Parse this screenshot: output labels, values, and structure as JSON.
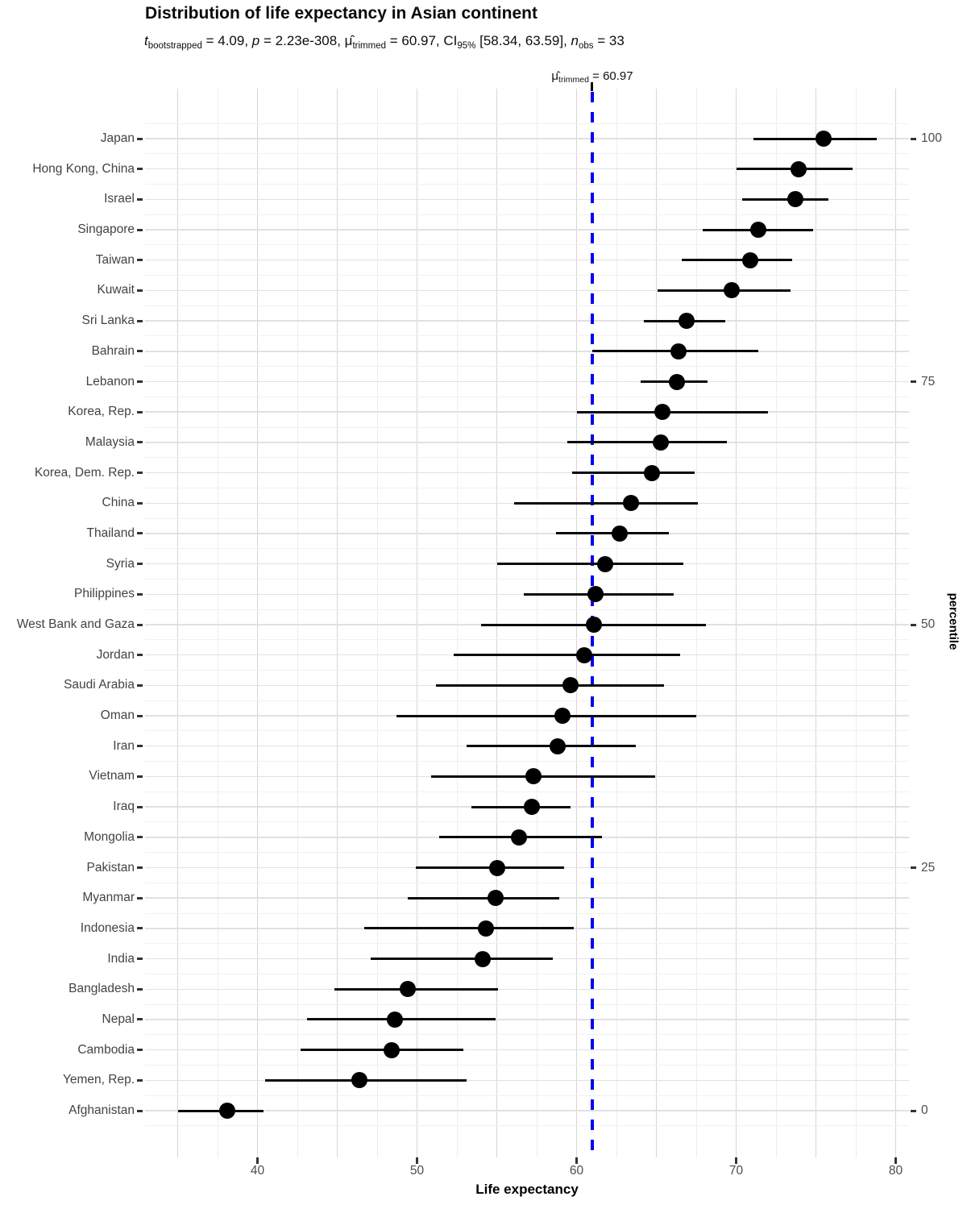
{
  "chart_data": {
    "type": "scatter",
    "subtype": "dot-plot-with-95ci-error-bars",
    "title": "Distribution of life expectancy in Asian continent",
    "subtitle_plain": "t bootstrapped = 4.09, p = 2.23e-308, μ̂ trimmed = 60.97, CI 95% [58.34, 63.59], n obs = 33",
    "subtitle_segments": [
      {
        "text": "t",
        "style": "italic"
      },
      {
        "text": "bootstrapped",
        "style": "sub"
      },
      {
        "text": " = 4.09, ",
        "style": "normal"
      },
      {
        "text": "p",
        "style": "italic"
      },
      {
        "text": " = 2.23e-308, ",
        "style": "normal"
      },
      {
        "text": "μ̂",
        "style": "normal"
      },
      {
        "text": "trimmed",
        "style": "sub"
      },
      {
        "text": " = 60.97, CI",
        "style": "normal"
      },
      {
        "text": "95%",
        "style": "sub"
      },
      {
        "text": " [58.34, 63.59], ",
        "style": "normal"
      },
      {
        "text": "n",
        "style": "italic"
      },
      {
        "text": "obs",
        "style": "sub"
      },
      {
        "text": " = 33",
        "style": "normal"
      }
    ],
    "annotation_segments": [
      {
        "text": "μ̂",
        "style": "normal"
      },
      {
        "text": "trimmed",
        "style": "sub"
      },
      {
        "text": " = 60.97",
        "style": "normal"
      }
    ],
    "stats": {
      "t_bootstrapped": 4.09,
      "p_value": "2.23e-308",
      "mu_trimmed": 60.97,
      "ci_95": [
        58.34,
        63.59
      ],
      "n_obs": 33
    },
    "xlabel": "Life expectancy",
    "ylabel_right": "percentile",
    "x_ticks": [
      40,
      50,
      60,
      70,
      80
    ],
    "xlim": [
      33,
      81
    ],
    "x_grid": {
      "start": 35,
      "end": 80,
      "minor_step": 2.5,
      "major_step": 5
    },
    "right_ticks": [
      {
        "label": "100",
        "row": 0
      },
      {
        "label": "75",
        "row": 8
      },
      {
        "label": "50",
        "row": 16
      },
      {
        "label": "25",
        "row": 24
      },
      {
        "label": "0",
        "row": 32
      }
    ],
    "reference_line": {
      "value": 60.97,
      "style": "dashed"
    },
    "series": [
      {
        "country": "Japan",
        "estimate": 75.5,
        "ci_low": 71.1,
        "ci_high": 78.8
      },
      {
        "country": "Hong Kong, China",
        "estimate": 73.9,
        "ci_low": 70.0,
        "ci_high": 77.3
      },
      {
        "country": "Israel",
        "estimate": 73.7,
        "ci_low": 70.4,
        "ci_high": 75.8
      },
      {
        "country": "Singapore",
        "estimate": 71.4,
        "ci_low": 67.9,
        "ci_high": 74.8
      },
      {
        "country": "Taiwan",
        "estimate": 70.9,
        "ci_low": 66.6,
        "ci_high": 73.5
      },
      {
        "country": "Kuwait",
        "estimate": 69.7,
        "ci_low": 65.1,
        "ci_high": 73.4
      },
      {
        "country": "Sri Lanka",
        "estimate": 66.9,
        "ci_low": 64.2,
        "ci_high": 69.3
      },
      {
        "country": "Bahrain",
        "estimate": 66.4,
        "ci_low": 61.0,
        "ci_high": 71.4
      },
      {
        "country": "Lebanon",
        "estimate": 66.3,
        "ci_low": 64.0,
        "ci_high": 68.2
      },
      {
        "country": "Korea, Rep.",
        "estimate": 65.4,
        "ci_low": 60.0,
        "ci_high": 72.0
      },
      {
        "country": "Malaysia",
        "estimate": 65.3,
        "ci_low": 59.4,
        "ci_high": 69.4
      },
      {
        "country": "Korea, Dem. Rep.",
        "estimate": 64.7,
        "ci_low": 59.7,
        "ci_high": 67.4
      },
      {
        "country": "China",
        "estimate": 63.4,
        "ci_low": 56.1,
        "ci_high": 67.6
      },
      {
        "country": "Thailand",
        "estimate": 62.7,
        "ci_low": 58.7,
        "ci_high": 65.8
      },
      {
        "country": "Syria",
        "estimate": 61.8,
        "ci_low": 55.0,
        "ci_high": 66.7
      },
      {
        "country": "Philippines",
        "estimate": 61.2,
        "ci_low": 56.7,
        "ci_high": 66.1
      },
      {
        "country": "West Bank and Gaza",
        "estimate": 61.1,
        "ci_low": 54.0,
        "ci_high": 68.1
      },
      {
        "country": "Jordan",
        "estimate": 60.5,
        "ci_low": 52.3,
        "ci_high": 66.5
      },
      {
        "country": "Saudi Arabia",
        "estimate": 59.6,
        "ci_low": 51.2,
        "ci_high": 65.5
      },
      {
        "country": "Oman",
        "estimate": 59.1,
        "ci_low": 48.7,
        "ci_high": 67.5
      },
      {
        "country": "Iran",
        "estimate": 58.8,
        "ci_low": 53.1,
        "ci_high": 63.7
      },
      {
        "country": "Vietnam",
        "estimate": 57.3,
        "ci_low": 50.9,
        "ci_high": 64.9
      },
      {
        "country": "Iraq",
        "estimate": 57.2,
        "ci_low": 53.4,
        "ci_high": 59.6
      },
      {
        "country": "Mongolia",
        "estimate": 56.4,
        "ci_low": 51.4,
        "ci_high": 61.6
      },
      {
        "country": "Pakistan",
        "estimate": 55.0,
        "ci_low": 49.9,
        "ci_high": 59.2
      },
      {
        "country": "Myanmar",
        "estimate": 54.9,
        "ci_low": 49.4,
        "ci_high": 58.9
      },
      {
        "country": "Indonesia",
        "estimate": 54.3,
        "ci_low": 46.7,
        "ci_high": 59.8
      },
      {
        "country": "India",
        "estimate": 54.1,
        "ci_low": 47.1,
        "ci_high": 58.5
      },
      {
        "country": "Bangladesh",
        "estimate": 49.4,
        "ci_low": 44.8,
        "ci_high": 55.1
      },
      {
        "country": "Nepal",
        "estimate": 48.6,
        "ci_low": 43.1,
        "ci_high": 54.9
      },
      {
        "country": "Cambodia",
        "estimate": 48.4,
        "ci_low": 42.7,
        "ci_high": 52.9
      },
      {
        "country": "Yemen, Rep.",
        "estimate": 46.4,
        "ci_low": 40.5,
        "ci_high": 53.1
      },
      {
        "country": "Afghanistan",
        "estimate": 38.1,
        "ci_low": 35.0,
        "ci_high": 40.4
      }
    ],
    "colors": {
      "point": "#000000",
      "ci_line": "#0a0a0a",
      "reference_line": "#0202ee",
      "grid_major_v": "#d6d6d6",
      "grid_minor_v": "#ededed",
      "grid_major_h": "#e1e1e1",
      "grid_minor_h": "#f1f1f1",
      "axis_text": "#4d4d4d"
    },
    "legend": null,
    "grid": true
  }
}
